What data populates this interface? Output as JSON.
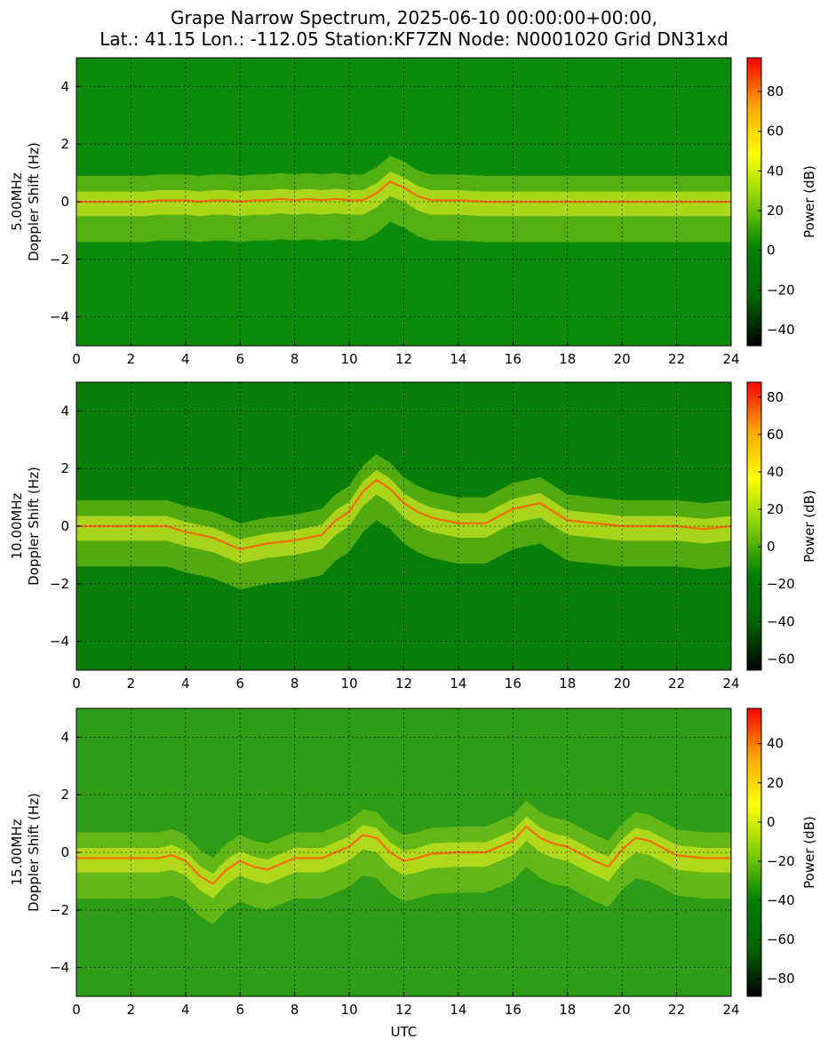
{
  "figure": {
    "title_line1": "Grape Narrow Spectrum, 2025-06-10 00:00:00+00:00,",
    "title_line2": "Lat.: 41.15 Lon.: -112.05 Station:KF7ZN Node: N0001020 Grid DN31xd",
    "colormap": [
      "#000000",
      "#006400",
      "#008000",
      "#80d000",
      "#ffff00",
      "#ffa500",
      "#ff0000"
    ]
  },
  "chart_data": [
    {
      "type": "heatmap",
      "xlabel": "",
      "ylabel_line1": "5.00MHz",
      "ylabel_line2": "Doppler Shift (Hz)",
      "xlim": [
        0,
        24
      ],
      "ylim": [
        -5,
        5
      ],
      "xticks": [
        0,
        2,
        4,
        6,
        8,
        10,
        12,
        14,
        16,
        18,
        20,
        22,
        24
      ],
      "yticks": [
        -4,
        -2,
        0,
        2,
        4
      ],
      "grid": true,
      "colorbar": {
        "label": "Power (dB)",
        "range": [
          -48,
          97
        ],
        "ticks": [
          -40,
          -20,
          0,
          20,
          40,
          60,
          80
        ]
      },
      "carrier_trace": {
        "x": [
          0,
          1,
          2,
          2.5,
          3,
          3.5,
          4,
          4.5,
          5,
          5.5,
          6,
          6.5,
          7,
          7.5,
          8,
          8.5,
          9,
          9.5,
          10,
          10.5,
          11,
          11.5,
          12,
          12.5,
          13,
          14,
          15,
          16,
          18,
          20,
          22,
          24
        ],
        "y": [
          0,
          0,
          0,
          0,
          0.05,
          0.05,
          0.05,
          0,
          0.05,
          0.05,
          0,
          0.05,
          0.05,
          0.1,
          0.05,
          0.1,
          0.05,
          0.1,
          0.05,
          0.05,
          0.3,
          0.7,
          0.5,
          0.2,
          0.05,
          0.05,
          0,
          0,
          0,
          0,
          0,
          0
        ]
      }
    },
    {
      "type": "heatmap",
      "xlabel": "",
      "ylabel_line1": "10.00MHz",
      "ylabel_line2": "Doppler Shift (Hz)",
      "xlim": [
        0,
        24
      ],
      "ylim": [
        -5,
        5
      ],
      "xticks": [
        0,
        2,
        4,
        6,
        8,
        10,
        12,
        14,
        16,
        18,
        20,
        22,
        24
      ],
      "yticks": [
        -4,
        -2,
        0,
        2,
        4
      ],
      "grid": true,
      "colorbar": {
        "label": "Power (dB)",
        "range": [
          -66,
          88
        ],
        "ticks": [
          -60,
          -40,
          -20,
          0,
          20,
          40,
          60,
          80
        ]
      },
      "carrier_trace": {
        "x": [
          0,
          1,
          2,
          3,
          3.3,
          4,
          5,
          6,
          7,
          8,
          9,
          9.5,
          10,
          10.5,
          11,
          11.5,
          12,
          12.5,
          13,
          13.5,
          14,
          15,
          16,
          17,
          18,
          19,
          20,
          21,
          22,
          23,
          24
        ],
        "y": [
          0,
          0,
          0,
          0,
          0,
          -0.2,
          -0.4,
          -0.8,
          -0.6,
          -0.5,
          -0.3,
          0.2,
          0.5,
          1.2,
          1.6,
          1.3,
          0.8,
          0.5,
          0.3,
          0.2,
          0.1,
          0.1,
          0.6,
          0.8,
          0.2,
          0.1,
          0,
          0,
          0,
          -0.1,
          0
        ]
      }
    },
    {
      "type": "heatmap",
      "xlabel": "UTC",
      "ylabel_line1": "15.00MHz",
      "ylabel_line2": "Doppler Shift (Hz)",
      "xlim": [
        0,
        24
      ],
      "ylim": [
        -5,
        5
      ],
      "xticks": [
        0,
        2,
        4,
        6,
        8,
        10,
        12,
        14,
        16,
        18,
        20,
        22,
        24
      ],
      "yticks": [
        -4,
        -2,
        0,
        2,
        4
      ],
      "grid": true,
      "colorbar": {
        "label": "Power (dB)",
        "range": [
          -89,
          58
        ],
        "ticks": [
          -80,
          -60,
          -40,
          -20,
          0,
          20,
          40
        ]
      },
      "carrier_trace": {
        "x": [
          0,
          1,
          2,
          3,
          3.5,
          4,
          4.5,
          5,
          5.5,
          6,
          6.5,
          7,
          7.5,
          8,
          9,
          9.5,
          10,
          10.5,
          11,
          11.5,
          12,
          12.5,
          13,
          14,
          15,
          16,
          16.5,
          17,
          17.5,
          18,
          19,
          19.5,
          20,
          20.5,
          21,
          22,
          23,
          24
        ],
        "y": [
          -0.2,
          -0.2,
          -0.2,
          -0.2,
          -0.1,
          -0.3,
          -0.8,
          -1.1,
          -0.6,
          -0.3,
          -0.5,
          -0.6,
          -0.4,
          -0.2,
          -0.2,
          0,
          0.2,
          0.6,
          0.5,
          0,
          -0.3,
          -0.2,
          -0.05,
          0,
          0,
          0.4,
          0.9,
          0.5,
          0.3,
          0.2,
          -0.3,
          -0.5,
          0.1,
          0.5,
          0.4,
          -0.1,
          -0.2,
          -0.2
        ]
      }
    }
  ]
}
